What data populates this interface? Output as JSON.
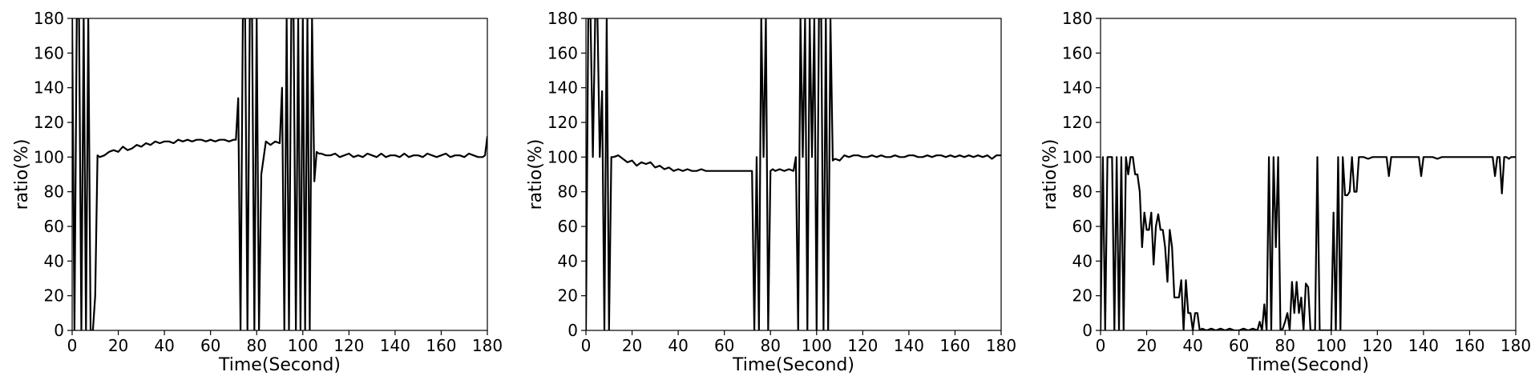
{
  "chart_data": [
    {
      "type": "line",
      "xlabel": "Time(Second)",
      "ylabel": "ratio(%)",
      "xlim": [
        0,
        180
      ],
      "ylim": [
        0,
        180
      ],
      "xticks": [
        "0",
        "20",
        "40",
        "60",
        "80",
        "100",
        "120",
        "140",
        "160",
        "180"
      ],
      "yticks": [
        "0",
        "20",
        "40",
        "60",
        "80",
        "100",
        "120",
        "140",
        "160",
        "180"
      ],
      "grid": false,
      "series": [
        {
          "color": "#000000",
          "x": [
            0,
            1,
            2,
            3,
            4,
            5,
            6,
            7,
            8,
            9,
            10,
            11,
            12,
            14,
            16,
            18,
            20,
            22,
            24,
            26,
            28,
            30,
            32,
            34,
            36,
            38,
            40,
            42,
            44,
            46,
            48,
            50,
            52,
            54,
            56,
            58,
            60,
            62,
            64,
            66,
            68,
            70,
            71,
            72,
            73,
            74,
            75,
            76,
            77,
            78,
            79,
            80,
            81,
            82,
            84,
            86,
            88,
            90,
            91,
            92,
            93,
            94,
            95,
            96,
            97,
            98,
            99,
            100,
            101,
            102,
            103,
            104,
            105,
            106,
            107,
            108,
            110,
            112,
            114,
            116,
            118,
            120,
            122,
            124,
            126,
            128,
            130,
            132,
            134,
            136,
            138,
            140,
            142,
            144,
            146,
            148,
            150,
            152,
            154,
            156,
            158,
            160,
            162,
            164,
            166,
            168,
            170,
            172,
            174,
            176,
            178,
            179,
            180
          ],
          "y": [
            180,
            0,
            180,
            180,
            0,
            180,
            0,
            180,
            0,
            0,
            20,
            101,
            100,
            101,
            103,
            104,
            103,
            106,
            104,
            105,
            107,
            106,
            108,
            107,
            109,
            108,
            109,
            109,
            108,
            110,
            109,
            110,
            109,
            110,
            110,
            109,
            110,
            109,
            110,
            110,
            109,
            110,
            110,
            134,
            0,
            180,
            180,
            0,
            180,
            180,
            0,
            180,
            0,
            90,
            109,
            107,
            109,
            108,
            140,
            0,
            180,
            0,
            180,
            180,
            0,
            180,
            0,
            180,
            0,
            180,
            0,
            180,
            86,
            103,
            102,
            102,
            101,
            101,
            102,
            100,
            101,
            102,
            100,
            101,
            100,
            102,
            101,
            100,
            102,
            100,
            101,
            101,
            100,
            102,
            100,
            101,
            101,
            100,
            102,
            101,
            100,
            101,
            102,
            100,
            101,
            101,
            100,
            102,
            101,
            100,
            100,
            101,
            112
          ]
        }
      ]
    },
    {
      "type": "line",
      "xlabel": "Time(Second)",
      "ylabel": "ratio(%)",
      "xlim": [
        0,
        180
      ],
      "ylim": [
        0,
        180
      ],
      "xticks": [
        "0",
        "20",
        "40",
        "60",
        "80",
        "100",
        "120",
        "140",
        "160",
        "180"
      ],
      "yticks": [
        "0",
        "20",
        "40",
        "60",
        "80",
        "100",
        "120",
        "140",
        "160",
        "180"
      ],
      "grid": false,
      "series": [
        {
          "color": "#000000",
          "x": [
            0,
            1,
            2,
            3,
            4,
            5,
            6,
            7,
            8,
            9,
            10,
            11,
            12,
            14,
            16,
            18,
            20,
            22,
            24,
            26,
            28,
            30,
            32,
            34,
            36,
            38,
            40,
            42,
            44,
            46,
            48,
            50,
            52,
            54,
            56,
            58,
            60,
            62,
            64,
            66,
            68,
            70,
            72,
            73,
            74,
            75,
            76,
            77,
            78,
            79,
            80,
            81,
            82,
            84,
            86,
            88,
            90,
            91,
            92,
            93,
            94,
            95,
            96,
            97,
            98,
            99,
            100,
            101,
            102,
            103,
            104,
            105,
            106,
            107,
            108,
            110,
            112,
            114,
            116,
            118,
            120,
            122,
            124,
            126,
            128,
            130,
            132,
            134,
            136,
            138,
            140,
            142,
            144,
            146,
            148,
            150,
            152,
            154,
            156,
            158,
            160,
            162,
            164,
            166,
            168,
            170,
            172,
            174,
            176,
            178,
            180
          ],
          "y": [
            0,
            180,
            180,
            100,
            180,
            180,
            100,
            138,
            0,
            180,
            0,
            100,
            100,
            101,
            99,
            97,
            98,
            95,
            97,
            96,
            97,
            94,
            95,
            93,
            94,
            92,
            93,
            92,
            93,
            92,
            92,
            93,
            92,
            92,
            92,
            92,
            92,
            92,
            92,
            92,
            92,
            92,
            92,
            0,
            100,
            0,
            180,
            100,
            180,
            0,
            92,
            93,
            92,
            93,
            92,
            93,
            92,
            100,
            0,
            180,
            100,
            180,
            0,
            180,
            100,
            180,
            0,
            180,
            180,
            0,
            180,
            0,
            180,
            98,
            99,
            98,
            101,
            100,
            101,
            101,
            100,
            100,
            101,
            100,
            101,
            100,
            100,
            101,
            100,
            100,
            101,
            101,
            100,
            100,
            101,
            100,
            101,
            101,
            100,
            101,
            100,
            101,
            100,
            101,
            100,
            101,
            100,
            101,
            99,
            101,
            101
          ]
        }
      ]
    },
    {
      "type": "line",
      "xlabel": "Time(Second)",
      "ylabel": "ratio(%)",
      "xlim": [
        0,
        180
      ],
      "ylim": [
        0,
        180
      ],
      "xticks": [
        "0",
        "20",
        "40",
        "60",
        "80",
        "100",
        "120",
        "140",
        "160",
        "180"
      ],
      "yticks": [
        "0",
        "20",
        "40",
        "60",
        "80",
        "100",
        "120",
        "140",
        "160",
        "180"
      ],
      "grid": false,
      "series": [
        {
          "color": "#000000",
          "x": [
            0,
            1,
            2,
            3,
            4,
            5,
            6,
            7,
            8,
            9,
            10,
            11,
            12,
            13,
            14,
            15,
            16,
            17,
            18,
            19,
            20,
            21,
            22,
            23,
            24,
            25,
            26,
            27,
            28,
            29,
            30,
            31,
            32,
            33,
            34,
            35,
            36,
            37,
            38,
            39,
            40,
            41,
            42,
            43,
            44,
            46,
            48,
            50,
            52,
            54,
            56,
            58,
            60,
            62,
            64,
            66,
            68,
            69,
            70,
            71,
            72,
            73,
            74,
            75,
            76,
            77,
            78,
            79,
            80,
            81,
            82,
            83,
            84,
            85,
            86,
            87,
            88,
            89,
            90,
            91,
            92,
            93,
            94,
            95,
            96,
            97,
            98,
            99,
            100,
            101,
            102,
            103,
            104,
            105,
            106,
            107,
            108,
            109,
            110,
            111,
            112,
            114,
            116,
            118,
            120,
            122,
            124,
            125,
            126,
            128,
            130,
            132,
            134,
            136,
            138,
            139,
            140,
            142,
            144,
            146,
            148,
            150,
            152,
            154,
            156,
            158,
            160,
            162,
            164,
            166,
            168,
            170,
            171,
            172,
            173,
            174,
            175,
            176,
            177,
            178,
            179,
            180
          ],
          "y": [
            0,
            100,
            0,
            100,
            100,
            100,
            0,
            100,
            0,
            100,
            0,
            100,
            90,
            100,
            100,
            90,
            90,
            80,
            48,
            68,
            58,
            58,
            68,
            38,
            60,
            67,
            58,
            58,
            48,
            28,
            58,
            48,
            19,
            19,
            19,
            29,
            0,
            29,
            10,
            10,
            0,
            10,
            10,
            0,
            1,
            0,
            1,
            0,
            1,
            0,
            1,
            0,
            0,
            1,
            0,
            1,
            0,
            5,
            0,
            15,
            0,
            100,
            0,
            100,
            48,
            100,
            0,
            1,
            5,
            10,
            0,
            28,
            10,
            28,
            10,
            19,
            0,
            27,
            25,
            0,
            0,
            0,
            100,
            0,
            0,
            0,
            0,
            0,
            0,
            68,
            0,
            100,
            0,
            100,
            78,
            78,
            80,
            100,
            80,
            80,
            100,
            100,
            99,
            100,
            100,
            100,
            100,
            89,
            100,
            100,
            100,
            100,
            100,
            100,
            100,
            89,
            100,
            100,
            100,
            99,
            100,
            100,
            100,
            100,
            100,
            100,
            100,
            100,
            100,
            100,
            100,
            100,
            89,
            100,
            100,
            79,
            100,
            100,
            99,
            100,
            100,
            100
          ]
        }
      ]
    }
  ]
}
